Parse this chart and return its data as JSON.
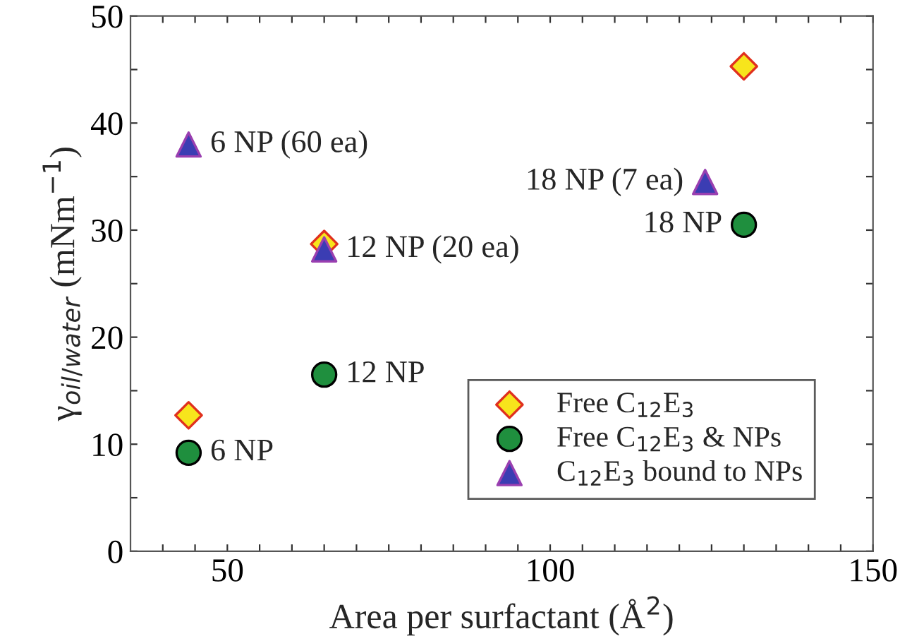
{
  "chart_data": {
    "type": "scatter",
    "xlabel": "Area per surfactant (Å$^{2}$)",
    "ylabel": "γ$_{oil/water}$ (mNm$^{−1}$)",
    "xlim": [
      35,
      150
    ],
    "ylim": [
      0,
      50
    ],
    "xticks": [
      {
        "value": 40,
        "label": null
      },
      {
        "value": 45,
        "label": null
      },
      50,
      {
        "value": 55,
        "label": null
      },
      {
        "value": 60,
        "label": null
      },
      {
        "value": 65,
        "label": null
      },
      {
        "value": 70,
        "label": null
      },
      {
        "value": 75,
        "label": null
      },
      {
        "value": 80,
        "label": null
      },
      {
        "value": 85,
        "label": null
      },
      {
        "value": 90,
        "label": null
      },
      {
        "value": 95,
        "label": null
      },
      100,
      {
        "value": 105,
        "label": null
      },
      {
        "value": 110,
        "label": null
      },
      {
        "value": 115,
        "label": null
      },
      {
        "value": 120,
        "label": null
      },
      {
        "value": 125,
        "label": null
      },
      {
        "value": 130,
        "label": null
      },
      {
        "value": 135,
        "label": null
      },
      {
        "value": 140,
        "label": null
      },
      {
        "value": 145,
        "label": null
      },
      150
    ],
    "yticks": [
      0,
      {
        "value": 5,
        "label": null
      },
      10,
      {
        "value": 15,
        "label": null
      },
      20,
      {
        "value": 25,
        "label": null
      },
      30,
      {
        "value": 35,
        "label": null
      },
      40,
      {
        "value": 45,
        "label": null
      },
      50
    ],
    "grid": false,
    "legend": "bottom right",
    "series": [
      {
        "name": "Free C$_{12}$E$_{3}$",
        "color": "#f7e51c",
        "marker": "diamond",
        "x": [
          44,
          65,
          130
        ],
        "values": [
          12.7,
          28.7,
          45.3
        ]
      },
      {
        "name": "Free C$_{12}$E$_{3}$ & NPs",
        "color": "#1f8f3e",
        "marker": "circle",
        "x": [
          44,
          65,
          130
        ],
        "values": [
          9.2,
          16.5,
          30.5
        ]
      },
      {
        "name": "C$_{12}$E$_{3}$ bound to NPs",
        "color": "#3b3db3",
        "marker": "triangle",
        "x": [
          44,
          65,
          124
        ],
        "values": [
          38,
          28.2,
          34.5
        ]
      }
    ],
    "annotations": [
      {
        "text": "6 NP (60 ea)",
        "x": 44,
        "y": 38
      },
      {
        "text": "12 NP (20 ea)",
        "x": 65,
        "y": 28.2
      },
      {
        "text": "18 NP (7 ea)",
        "x": 124,
        "y": 34.5
      },
      {
        "text": "18 NP",
        "x": 130,
        "y": 30.5
      },
      {
        "text": "12 NP",
        "x": 65,
        "y": 16.5
      },
      {
        "text": "6 NP",
        "x": 44,
        "y": 9.2
      }
    ]
  }
}
